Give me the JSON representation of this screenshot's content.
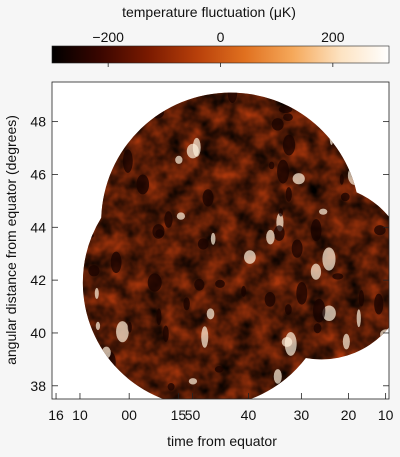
{
  "chart_data": {
    "type": "heatmap",
    "title": "",
    "colorbar": {
      "label": "temperature fluctuation (μK)",
      "ticks": [
        {
          "value": -200,
          "label": "−200"
        },
        {
          "value": 0,
          "label": "0"
        },
        {
          "value": 200,
          "label": "200"
        }
      ],
      "range": [
        -300,
        300
      ],
      "colormap": [
        "#000000",
        "#3a0600",
        "#7a1a00",
        "#b73f0a",
        "#e0701f",
        "#f5a85a",
        "#fde3c2",
        "#ffffff"
      ]
    },
    "ylabel": "angular distance from equator (degrees)",
    "ylim": [
      37.5,
      49.5
    ],
    "y_ticks": [
      {
        "value": 38,
        "label": "38"
      },
      {
        "value": 40,
        "label": "40"
      },
      {
        "value": 42,
        "label": "42"
      },
      {
        "value": 44,
        "label": "44"
      },
      {
        "value": 46,
        "label": "46"
      },
      {
        "value": 48,
        "label": "48"
      }
    ],
    "xlabel": "time from equator",
    "xlim": [
      0,
      1
    ],
    "x_ticks": [
      {
        "value": 0.012,
        "label": "16"
      },
      {
        "value": 0.083,
        "label": "10"
      },
      {
        "value": 0.229,
        "label": "00"
      },
      {
        "value": 0.375,
        "label": "15"
      },
      {
        "value": 0.417,
        "label": "50"
      },
      {
        "value": 0.583,
        "label": "40"
      },
      {
        "value": 0.74,
        "label": "30"
      },
      {
        "value": 0.88,
        "label": "20"
      },
      {
        "value": 0.99,
        "label": "10"
      }
    ],
    "grid": false,
    "mapped_region": {
      "shape": "union of three overlapping discs",
      "discs": [
        {
          "cx": 0.53,
          "cy": 44.2,
          "r": 4.9
        },
        {
          "cx": 0.46,
          "cy": 41.9,
          "r": 4.7
        },
        {
          "cx": 0.8,
          "cy": 42.3,
          "r": 3.3
        }
      ]
    }
  }
}
